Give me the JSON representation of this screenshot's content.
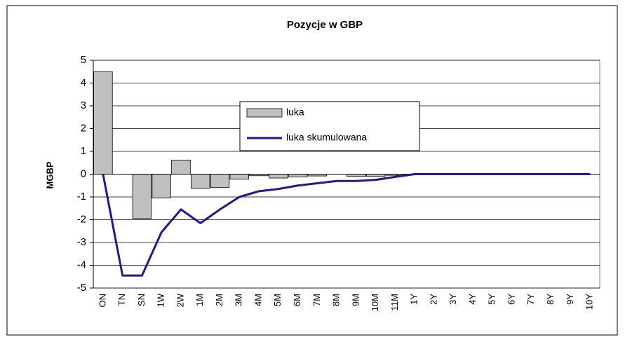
{
  "chart_data": {
    "type": "bar-line",
    "title": "Pozycje w GBP",
    "y_label": "MGBP",
    "categories": [
      "ON",
      "TN",
      "SN",
      "1W",
      "2W",
      "1M",
      "2M",
      "3M",
      "4M",
      "5M",
      "6M",
      "7M",
      "8M",
      "9M",
      "10M",
      "11M",
      "1Y",
      "2Y",
      "3Y",
      "4Y",
      "5Y",
      "6Y",
      "7Y",
      "8Y",
      "9Y",
      "10Y"
    ],
    "series": [
      {
        "name": "luka",
        "type": "bar",
        "color": "#c0c0c0",
        "values": [
          4.5,
          0,
          -1.95,
          -1.05,
          0.62,
          -0.62,
          -0.58,
          -0.22,
          -0.07,
          -0.17,
          -0.12,
          -0.08,
          0,
          -0.1,
          -0.1,
          -0.05,
          0,
          0,
          0,
          0,
          0,
          0,
          0,
          0,
          0,
          0
        ]
      },
      {
        "name": "luka skumulowana",
        "type": "line",
        "color": "#1c1c8c",
        "values": [
          0,
          -4.45,
          -4.45,
          -2.55,
          -1.55,
          -2.15,
          -1.55,
          -1.0,
          -0.75,
          -0.65,
          -0.5,
          -0.4,
          -0.3,
          -0.3,
          -0.25,
          -0.12,
          0,
          0,
          0,
          0,
          0,
          0,
          0,
          0,
          0,
          0
        ]
      }
    ],
    "ylim": [
      -5,
      5
    ],
    "yticks": [
      -5,
      -4,
      -3,
      -2,
      -1,
      0,
      1,
      2,
      3,
      4,
      5
    ],
    "grid": true
  }
}
